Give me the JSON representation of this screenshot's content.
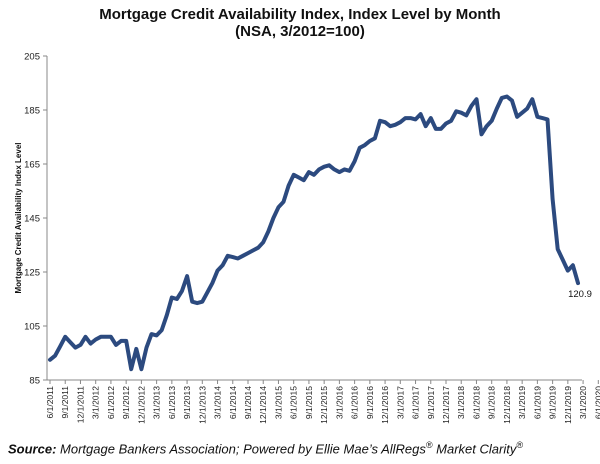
{
  "chart_data": {
    "type": "line",
    "title": "Mortgage Credit Availability Index, Index Level by Month",
    "subtitle": "(NSA, 3/2012=100)",
    "ylabel": "Mortgage Credit Availability Index Level",
    "xlabel": "",
    "ylim": [
      85,
      205
    ],
    "yticks": [
      "85",
      "105",
      "125",
      "145",
      "165",
      "185",
      "205"
    ],
    "grid": false,
    "legend": "none",
    "line_color": "#2c4a7f",
    "x_tick_labels": [
      "6/1/2011",
      "9/1/2011",
      "12/1/2011",
      "3/1/2012",
      "6/1/2012",
      "9/1/2012",
      "12/1/2012",
      "3/1/2013",
      "6/1/2013",
      "9/1/2013",
      "12/1/2013",
      "3/1/2014",
      "6/1/2014",
      "9/1/2014",
      "12/1/2014",
      "3/1/2015",
      "6/1/2015",
      "9/1/2015",
      "12/1/2015",
      "3/1/2016",
      "6/1/2016",
      "9/1/2016",
      "12/1/2016",
      "3/1/2017",
      "6/1/2017",
      "9/1/2017",
      "12/1/2017",
      "3/1/2018",
      "6/1/2018",
      "9/1/2018",
      "12/1/2018",
      "3/1/2019",
      "6/1/2019",
      "9/1/2019",
      "12/1/2019",
      "3/1/2020",
      "6/1/2020"
    ],
    "series": [
      {
        "values": [
          92.5,
          94,
          97.5,
          101,
          99,
          97,
          98,
          101,
          98.5,
          100,
          101,
          101,
          101,
          98,
          99.5,
          99.5,
          89,
          96.5,
          89,
          97,
          102,
          101.5,
          103.5,
          109,
          115.5,
          115,
          118,
          123.5,
          114,
          113.5,
          114,
          117.5,
          121,
          125.5,
          127.5,
          131,
          130.5,
          130,
          131,
          132,
          133,
          134,
          136,
          140,
          145,
          149,
          151,
          157,
          161,
          160,
          159,
          162,
          161,
          163,
          164,
          164.5,
          163,
          162,
          163,
          162.5,
          166,
          171,
          172,
          173.5,
          174.5,
          181,
          180.5,
          179,
          179.5,
          180.5,
          182,
          182,
          181.5,
          183.5,
          179,
          182,
          178,
          178,
          180,
          181,
          184.5,
          184,
          183,
          186.5,
          189,
          176,
          179,
          181,
          185.5,
          189.5,
          190,
          188.5,
          182.5,
          184,
          185.5,
          189,
          182.5,
          182,
          181.5,
          152,
          133.5,
          129.5,
          125.5,
          127.5,
          120.9
        ]
      }
    ],
    "annotations": [
      {
        "text": "120.9"
      }
    ]
  },
  "source": {
    "label": "Source:",
    "text": "Mortgage Bankers Association; Powered by Ellie Mae’s AllRegs",
    "sup1": "®",
    "text2": " Market Clarity",
    "sup2": "®"
  }
}
